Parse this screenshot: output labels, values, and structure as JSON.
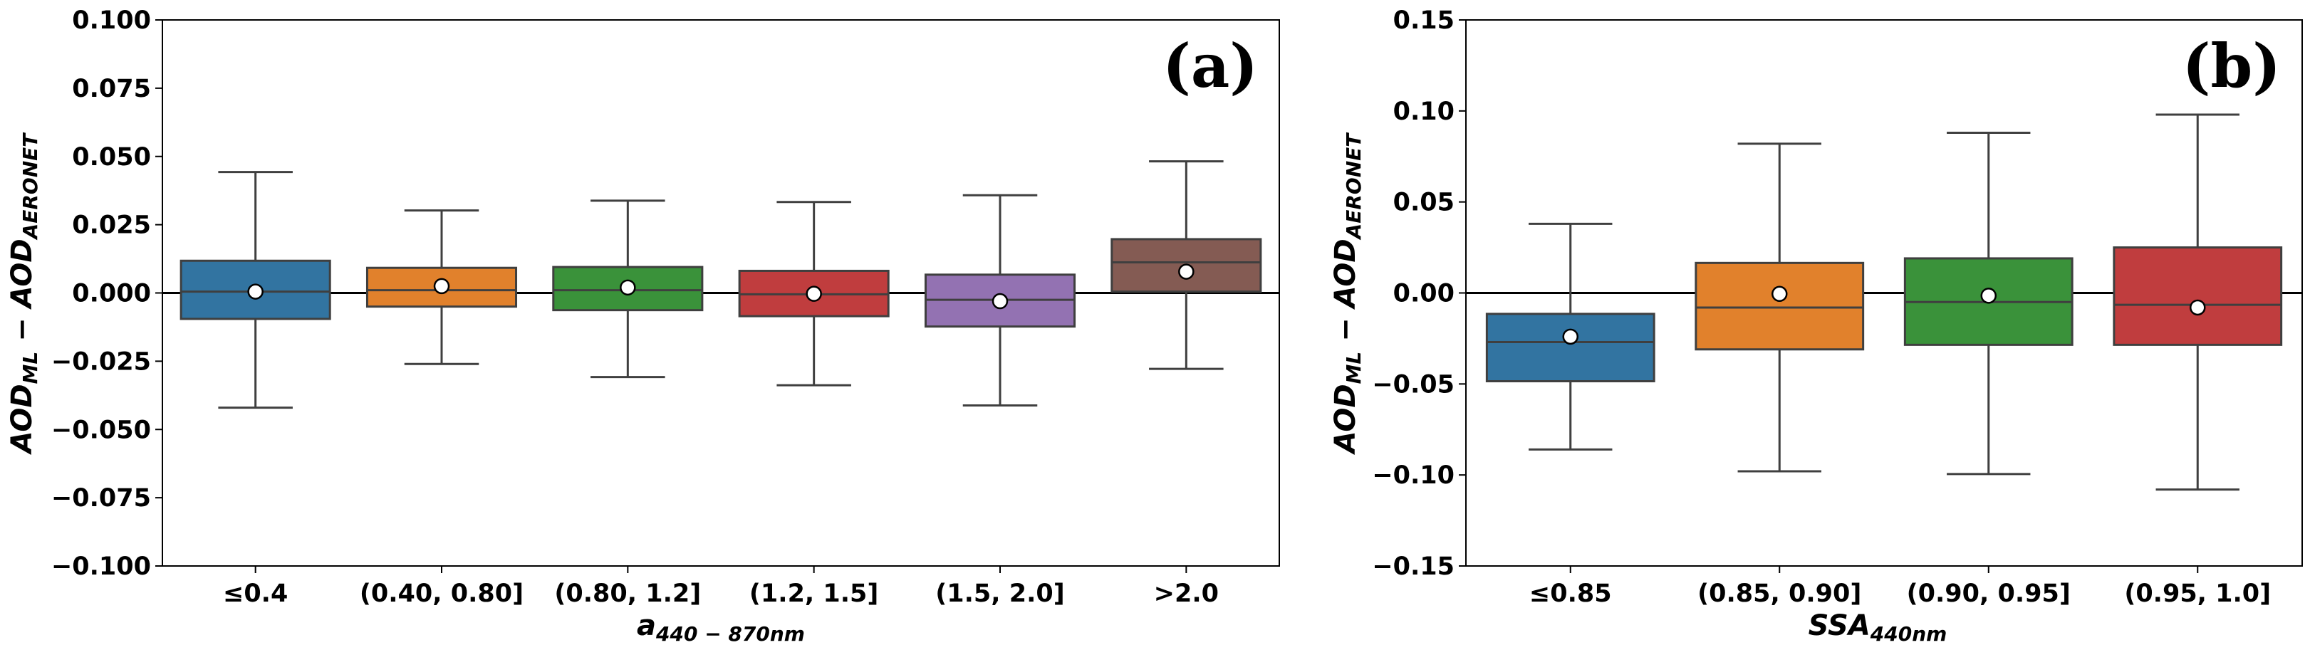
{
  "chart_data": [
    {
      "type": "box",
      "panel_label": "(a)",
      "panel_label_position": "top-right",
      "xlabel": {
        "base": "a",
        "sub": "440 − 870nm"
      },
      "ylabel": {
        "t1": "AOD",
        "s1": "ML",
        "t2": " − AOD",
        "s2": "AERONET"
      },
      "ylim": [
        -0.1,
        0.1
      ],
      "yticks": [
        "−0.100",
        "−0.075",
        "−0.050",
        "−0.025",
        "0.000",
        "0.025",
        "0.050",
        "0.075",
        "0.100"
      ],
      "ytick_values": [
        -0.1,
        -0.075,
        -0.05,
        -0.025,
        0,
        0.025,
        0.05,
        0.075,
        0.1
      ],
      "zero_line": 0,
      "categories": [
        "≤0.4",
        "(0.40, 0.80]",
        "(0.80, 1.2]",
        "(1.2, 1.5]",
        "(1.5, 2.0]",
        ">2.0"
      ],
      "colors": [
        "#3274a1",
        "#e1812c",
        "#3a923a",
        "#c03d3e",
        "#9372b2",
        "#845b53"
      ],
      "boxes": [
        {
          "whisker_low": -0.042,
          "q1": -0.0095,
          "median": 0.0005,
          "q3": 0.0118,
          "whisker_high": 0.0443,
          "mean": 0.0005
        },
        {
          "whisker_low": -0.026,
          "q1": -0.005,
          "median": 0.001,
          "q3": 0.0092,
          "whisker_high": 0.0302,
          "mean": 0.0025
        },
        {
          "whisker_low": -0.0308,
          "q1": -0.0063,
          "median": 0.001,
          "q3": 0.0095,
          "whisker_high": 0.0338,
          "mean": 0.002
        },
        {
          "whisker_low": -0.0338,
          "q1": -0.0085,
          "median": -0.0005,
          "q3": 0.0081,
          "whisker_high": 0.0333,
          "mean": -0.0003
        },
        {
          "whisker_low": -0.0412,
          "q1": -0.0123,
          "median": -0.0025,
          "q3": 0.0067,
          "whisker_high": 0.0358,
          "mean": -0.003
        },
        {
          "whisker_low": -0.0278,
          "q1": 0.0005,
          "median": 0.0112,
          "q3": 0.0197,
          "whisker_high": 0.0482,
          "mean": 0.0078
        }
      ]
    },
    {
      "type": "box",
      "panel_label": "(b)",
      "panel_label_position": "top-right",
      "xlabel": {
        "base": "SSA",
        "sub": "440nm"
      },
      "ylabel": {
        "t1": "AOD",
        "s1": "ML",
        "t2": " − AOD",
        "s2": "AERONET"
      },
      "ylim": [
        -0.15,
        0.15
      ],
      "yticks": [
        "−0.15",
        "−0.10",
        "−0.05",
        "0.00",
        "0.05",
        "0.10",
        "0.15"
      ],
      "ytick_values": [
        -0.15,
        -0.1,
        -0.05,
        0,
        0.05,
        0.1,
        0.15
      ],
      "zero_line": 0,
      "categories": [
        "≤0.85",
        "(0.85, 0.90]",
        "(0.90, 0.95]",
        "(0.95, 1.0]"
      ],
      "colors": [
        "#3274a1",
        "#e1812c",
        "#3a923a",
        "#c03d3e"
      ],
      "boxes": [
        {
          "whisker_low": -0.086,
          "q1": -0.0485,
          "median": -0.027,
          "q3": -0.0115,
          "whisker_high": 0.038,
          "mean": -0.024
        },
        {
          "whisker_low": -0.098,
          "q1": -0.031,
          "median": -0.008,
          "q3": 0.0165,
          "whisker_high": 0.082,
          "mean": -0.0005
        },
        {
          "whisker_low": -0.0995,
          "q1": -0.0285,
          "median": -0.005,
          "q3": 0.019,
          "whisker_high": 0.088,
          "mean": -0.0015
        },
        {
          "whisker_low": -0.108,
          "q1": -0.0285,
          "median": -0.0065,
          "q3": 0.025,
          "whisker_high": 0.098,
          "mean": -0.008
        }
      ]
    }
  ]
}
